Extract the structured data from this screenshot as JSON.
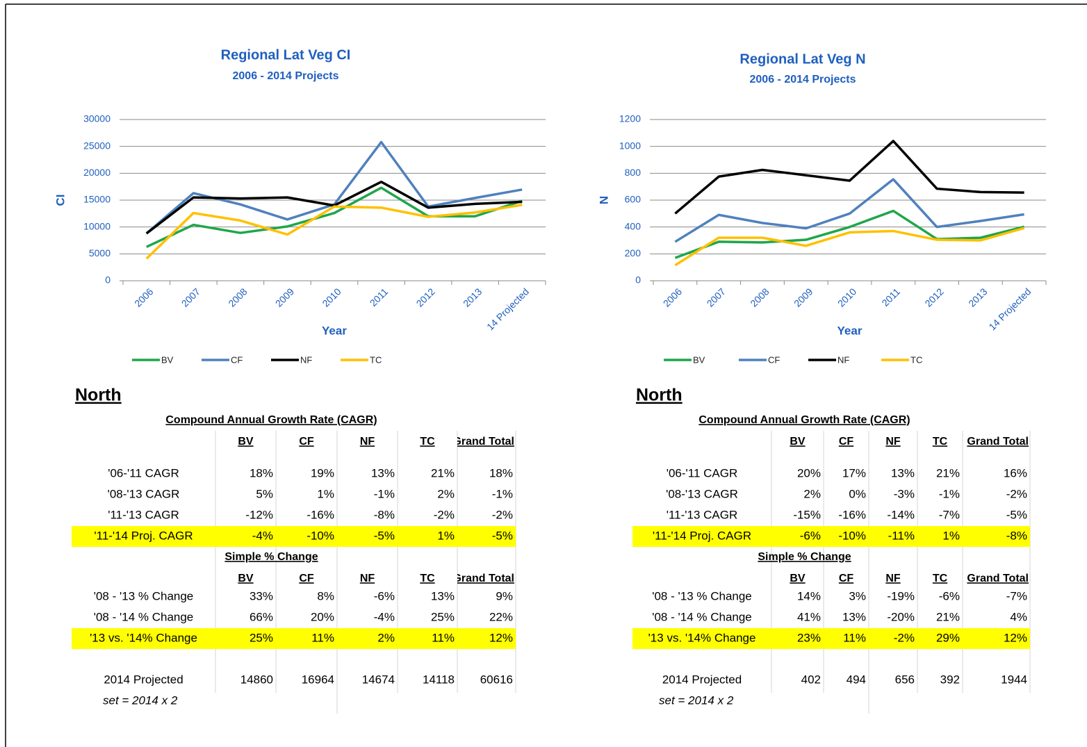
{
  "chart_data": [
    {
      "type": "line",
      "title": "Regional Lat Veg CI",
      "subtitle": "2006 - 2014 Projects",
      "x_label": "Year",
      "y_label": "CI",
      "categories": [
        "2006",
        "2007",
        "2008",
        "2009",
        "2010",
        "2011",
        "2012",
        "2013",
        "14 Projected"
      ],
      "series": [
        {
          "name": "BV",
          "color": "#1fa64b",
          "values": [
            6300,
            10400,
            8900,
            10100,
            12600,
            17300,
            12000,
            12000,
            14860
          ]
        },
        {
          "name": "CF",
          "color": "#4f81bd",
          "values": [
            8800,
            16300,
            14200,
            11400,
            14200,
            25800,
            13800,
            15400,
            16964
          ]
        },
        {
          "name": "NF",
          "color": "#000000",
          "values": [
            8800,
            15500,
            15300,
            15500,
            14000,
            18400,
            13600,
            14300,
            14674
          ]
        },
        {
          "name": "TC",
          "color": "#ffc000",
          "values": [
            4100,
            12600,
            11200,
            8600,
            13800,
            13600,
            11900,
            12700,
            14118
          ]
        }
      ],
      "ylim": [
        0,
        30000
      ],
      "yticks": [
        0,
        5000,
        10000,
        15000,
        20000,
        25000,
        30000
      ],
      "grid": true,
      "legend": "bottom"
    },
    {
      "type": "line",
      "title": "Regional Lat Veg N",
      "subtitle": "2006 - 2014 Projects",
      "x_label": "Year",
      "y_label": "N",
      "categories": [
        "2006",
        "2007",
        "2008",
        "2009",
        "2010",
        "2011",
        "2012",
        "2013",
        "14 Projected"
      ],
      "series": [
        {
          "name": "BV",
          "color": "#1fa64b",
          "values": [
            170,
            290,
            285,
            305,
            400,
            520,
            310,
            320,
            402
          ]
        },
        {
          "name": "CF",
          "color": "#4f81bd",
          "values": [
            290,
            490,
            430,
            390,
            500,
            755,
            400,
            445,
            494
          ]
        },
        {
          "name": "NF",
          "color": "#000000",
          "values": [
            500,
            775,
            825,
            785,
            745,
            1040,
            685,
            660,
            656
          ]
        },
        {
          "name": "TC",
          "color": "#ffc000",
          "values": [
            115,
            320,
            320,
            260,
            360,
            370,
            305,
            300,
            392
          ]
        }
      ],
      "ylim": [
        0,
        1200
      ],
      "yticks": [
        0,
        200,
        400,
        600,
        800,
        1000,
        1200
      ],
      "grid": true,
      "legend": "bottom"
    }
  ],
  "tables": [
    {
      "heading": "North",
      "sections": [
        {
          "title": "Compound Annual Growth Rate (CAGR)",
          "columns": [
            "BV",
            "CF",
            "NF",
            "TC",
            "Grand Total"
          ],
          "rows": [
            {
              "label": "'06-'11 CAGR",
              "cells": [
                "18%",
                "19%",
                "13%",
                "21%",
                "18%"
              ]
            },
            {
              "label": "'08-'13 CAGR",
              "cells": [
                "5%",
                "1%",
                "-1%",
                "2%",
                "-1%"
              ]
            },
            {
              "label": "'11-'13 CAGR",
              "cells": [
                "-12%",
                "-16%",
                "-8%",
                "-2%",
                "-2%"
              ]
            },
            {
              "label": "'11-'14 Proj. CAGR",
              "cells": [
                "-4%",
                "-10%",
                "-5%",
                "1%",
                "-5%"
              ],
              "highlight": true
            }
          ]
        },
        {
          "title": "Simple % Change",
          "columns": [
            "BV",
            "CF",
            "NF",
            "TC",
            "Grand Total"
          ],
          "rows": [
            {
              "label": "'08 - '13 % Change",
              "cells": [
                "33%",
                "8%",
                "-6%",
                "13%",
                "9%"
              ]
            },
            {
              "label": "'08 - '14 % Change",
              "cells": [
                "66%",
                "20%",
                "-4%",
                "25%",
                "22%"
              ]
            },
            {
              "label": "'13 vs. '14% Change",
              "cells": [
                "25%",
                "11%",
                "2%",
                "11%",
                "12%"
              ],
              "highlight": true
            }
          ]
        }
      ],
      "total_row": {
        "label": "2014 Projected",
        "cells": [
          "14860",
          "16964",
          "14674",
          "14118",
          "60616"
        ]
      },
      "note": "set = 2014 x 2"
    },
    {
      "heading": "North",
      "sections": [
        {
          "title": "Compound Annual Growth Rate (CAGR)",
          "columns": [
            "BV",
            "CF",
            "NF",
            "TC",
            "Grand Total"
          ],
          "rows": [
            {
              "label": "'06-'11 CAGR",
              "cells": [
                "20%",
                "17%",
                "13%",
                "21%",
                "16%"
              ]
            },
            {
              "label": "'08-'13 CAGR",
              "cells": [
                "2%",
                "0%",
                "-3%",
                "-1%",
                "-2%"
              ]
            },
            {
              "label": "'11-'13 CAGR",
              "cells": [
                "-15%",
                "-16%",
                "-14%",
                "-7%",
                "-5%"
              ]
            },
            {
              "label": "'11-'14 Proj. CAGR",
              "cells": [
                "-6%",
                "-10%",
                "-11%",
                "1%",
                "-8%"
              ],
              "highlight": true
            }
          ]
        },
        {
          "title": "Simple % Change",
          "columns": [
            "BV",
            "CF",
            "NF",
            "TC",
            "Grand Total"
          ],
          "rows": [
            {
              "label": "'08 - '13 % Change",
              "cells": [
                "14%",
                "3%",
                "-19%",
                "-6%",
                "-7%"
              ]
            },
            {
              "label": "'08 - '14 % Change",
              "cells": [
                "41%",
                "13%",
                "-20%",
                "21%",
                "4%"
              ]
            },
            {
              "label": "'13 vs. '14% Change",
              "cells": [
                "23%",
                "11%",
                "-2%",
                "29%",
                "12%"
              ],
              "highlight": true
            }
          ]
        }
      ],
      "total_row": {
        "label": "2014 Projected",
        "cells": [
          "402",
          "494",
          "656",
          "392",
          "1944"
        ]
      },
      "note": "set = 2014 x 2"
    }
  ]
}
